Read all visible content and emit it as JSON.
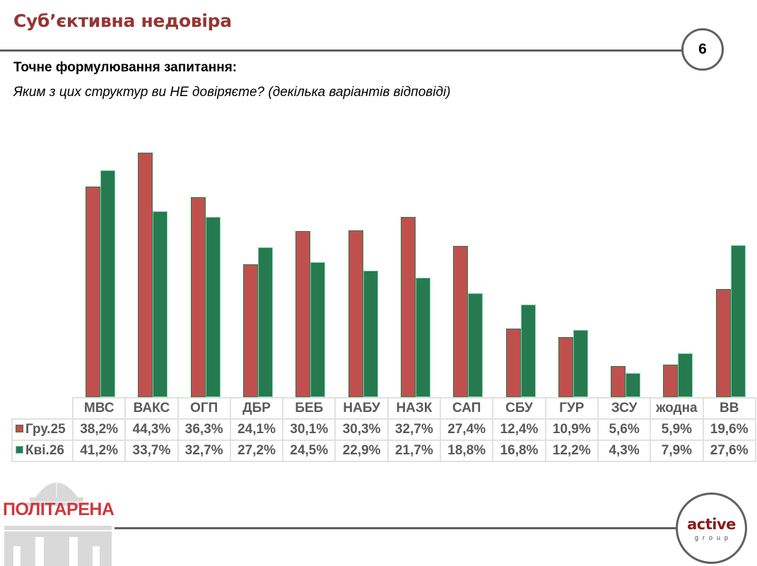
{
  "header": {
    "title": "Суб’єктивна недовіра",
    "page_number": "6"
  },
  "question": {
    "label": "Точне формулювання запитання:",
    "text": "Яким з цих структур ви НЕ довіряєте? (декілька варіантів відповіді)"
  },
  "colors": {
    "series_1": "#c0504d",
    "series_2": "#267a50",
    "title": "#943634"
  },
  "chart_data": {
    "type": "bar",
    "title": "Суб’єктивна недовіра",
    "xlabel": "",
    "ylabel": "",
    "ylim": [
      0,
      50
    ],
    "grid": false,
    "legend_position": "data-table",
    "categories": [
      "МВС",
      "ВАКС",
      "ОГП",
      "ДБР",
      "БЕБ",
      "НАБУ",
      "НАЗК",
      "САП",
      "СБУ",
      "ГУР",
      "ЗСУ",
      "жодна",
      "ВВ"
    ],
    "series": [
      {
        "name": "Гру.25",
        "color": "#c0504d",
        "values": [
          38.2,
          44.3,
          36.3,
          24.1,
          30.1,
          30.3,
          32.7,
          27.4,
          12.4,
          10.9,
          5.6,
          5.9,
          19.6
        ],
        "labels": [
          "38,2%",
          "44,3%",
          "36,3%",
          "24,1%",
          "30,1%",
          "30,3%",
          "32,7%",
          "27,4%",
          "12,4%",
          "10,9%",
          "5,6%",
          "5,9%",
          "19,6%"
        ]
      },
      {
        "name": "Кві.26",
        "color": "#267a50",
        "values": [
          41.2,
          33.7,
          32.7,
          27.2,
          24.5,
          22.9,
          21.7,
          18.8,
          16.8,
          12.2,
          4.3,
          7.9,
          27.6
        ],
        "labels": [
          "41,2%",
          "33,7%",
          "32,7%",
          "27,2%",
          "24,5%",
          "22,9%",
          "21,7%",
          "18,8%",
          "16,8%",
          "12,2%",
          "4,3%",
          "7,9%",
          "27,6%"
        ]
      }
    ]
  },
  "footer": {
    "left_logo": "ПОЛІТАРЕНА",
    "right_logo_main": "active",
    "right_logo_sub": "group"
  }
}
